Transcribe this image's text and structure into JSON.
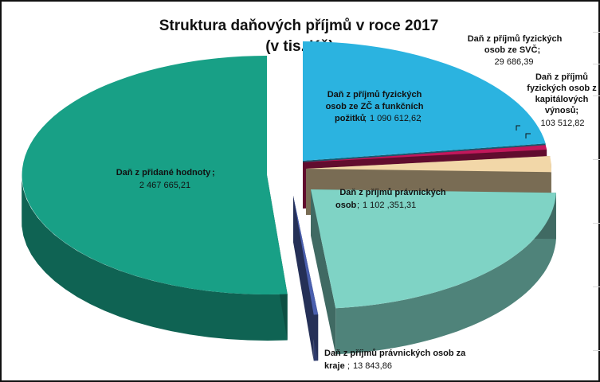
{
  "chart_data": {
    "type": "pie",
    "title": "Struktura daňových příjmů v roce 2017",
    "subtitle": "(v tis. Kč)",
    "slices": [
      {
        "label": "Daň z přidané hodnoty",
        "value": "2 467 665,21",
        "amount": 2467665.21,
        "color": "#18a086"
      },
      {
        "label": "Daň z příjmů fyzických osob ze ZČ a funkčních požitků",
        "value": "1 090 612,62",
        "amount": 1090612.62,
        "color": "#2bb3e0"
      },
      {
        "label": "Daň z příjmů fyzických osob ze SVČ",
        "value": "29 686,39",
        "amount": 29686.39,
        "color": "#c2185b"
      },
      {
        "label": "Daň z příjmů fyzických osob z kapitálových výnosů",
        "value": "103 512,82",
        "amount": 103512.82,
        "color": "#f2d7a8"
      },
      {
        "label": "Daň z příjmů právnických osob",
        "value": "1 102 ,351,31",
        "amount": 1102351.31,
        "color": "#7fd3c5"
      },
      {
        "label": "Daň z příjmů právnických osob za kraje",
        "value": "13 843,86",
        "amount": 13843.86,
        "color": "#4a5fae"
      }
    ]
  }
}
